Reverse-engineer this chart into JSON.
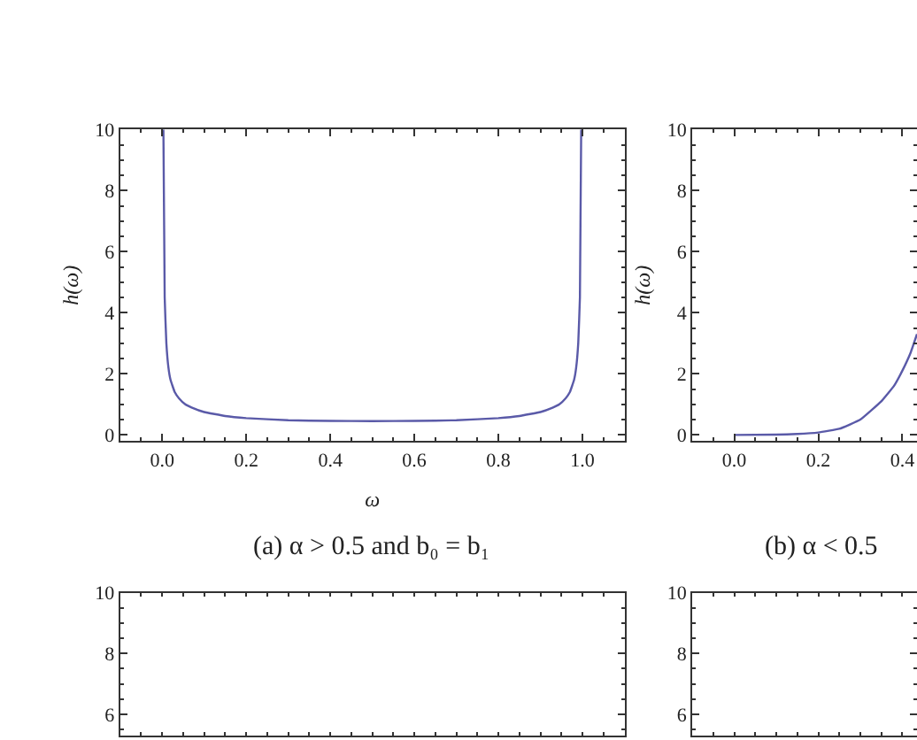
{
  "chart_data": [
    {
      "type": "line",
      "title": "(a) α > 0.5 and b₀ = b₁",
      "xlabel": "ω",
      "ylabel": "h(ω)",
      "xlim": [
        -0.1,
        1.1
      ],
      "ylim": [
        -0.2,
        10
      ],
      "xticks": [
        {
          "value": 0,
          "label": "0.0"
        },
        0.2,
        0.4,
        0.6,
        0.8,
        {
          "value": 1,
          "label": "1.0"
        }
      ],
      "yticks": [
        0,
        2,
        4,
        6,
        8,
        10
      ],
      "grid": false,
      "marker": "none",
      "series": [
        {
          "color": "#5a5aa8",
          "x": [
            0.003,
            0.006,
            0.01,
            0.015,
            0.02,
            0.03,
            0.04,
            0.055,
            0.07,
            0.1,
            0.15,
            0.2,
            0.3,
            0.4,
            0.5,
            0.6,
            0.7,
            0.8,
            0.85,
            0.9,
            0.93,
            0.945,
            0.96,
            0.97,
            0.98,
            0.985,
            0.99,
            0.994,
            0.997
          ],
          "values": [
            10,
            4.5,
            3.0,
            2.2,
            1.8,
            1.4,
            1.2,
            1.0,
            0.9,
            0.75,
            0.62,
            0.55,
            0.48,
            0.46,
            0.45,
            0.46,
            0.48,
            0.55,
            0.62,
            0.75,
            0.9,
            1.0,
            1.2,
            1.4,
            1.8,
            2.2,
            3.0,
            4.5,
            10
          ]
        }
      ]
    },
    {
      "type": "line",
      "title": "(b) α < 0.5",
      "ylabel": "h(ω)",
      "xlim": [
        -0.1,
        0.435
      ],
      "ylim": [
        -0.2,
        10
      ],
      "xticks": [
        {
          "value": 0,
          "label": "0.0"
        },
        0.2,
        0.4
      ],
      "yticks": [
        0,
        2,
        4,
        6,
        8,
        10
      ],
      "grid": false,
      "marker": "none",
      "series": [
        {
          "color": "#5a5aa8",
          "x": [
            0,
            0.1,
            0.15,
            0.2,
            0.25,
            0.3,
            0.35,
            0.38,
            0.4,
            0.42,
            0.435
          ],
          "values": [
            0,
            0.01,
            0.03,
            0.08,
            0.2,
            0.5,
            1.1,
            1.6,
            2.1,
            2.7,
            3.3
          ]
        }
      ]
    },
    {
      "type": "line",
      "xlim": [
        -0.1,
        1.1
      ],
      "ylim": [
        5.3,
        10
      ],
      "xticks": [
        {
          "value": 0,
          "label": null
        },
        {
          "value": 0.2,
          "label": null
        },
        {
          "value": 0.4,
          "label": null
        },
        {
          "value": 0.6,
          "label": null
        },
        {
          "value": 0.8,
          "label": null
        },
        {
          "value": 1,
          "label": null
        }
      ],
      "yticks": [
        6,
        8,
        10
      ],
      "tick_labels": "y",
      "grid": false
    },
    {
      "type": "line",
      "xlim": [
        -0.1,
        0.435
      ],
      "ylim": [
        5.3,
        10
      ],
      "xticks": [
        {
          "value": 0,
          "label": null
        },
        {
          "value": 0.2,
          "label": null
        },
        {
          "value": 0.4,
          "label": null
        }
      ],
      "yticks": [
        6,
        8,
        10
      ],
      "tick_labels": "y",
      "grid": false
    }
  ]
}
